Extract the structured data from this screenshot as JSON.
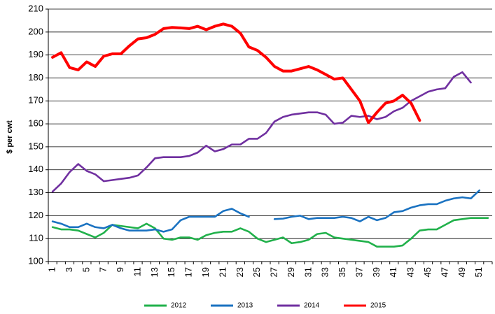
{
  "chart_data": {
    "type": "line",
    "y_label": "$ per cwt",
    "categories": [
      "1",
      null,
      "3",
      null,
      "5",
      null,
      "7",
      null,
      "9",
      null,
      "11",
      null,
      "13",
      null,
      "15",
      null,
      "17",
      null,
      "19",
      null,
      "21",
      null,
      "23",
      null,
      "25",
      null,
      "27",
      null,
      "29",
      null,
      "31",
      null,
      "33",
      null,
      "35",
      null,
      "37",
      null,
      "39",
      null,
      "41",
      null,
      "43",
      null,
      "45",
      null,
      "47",
      null,
      "49",
      null,
      "51",
      null
    ],
    "ylim": [
      100,
      210
    ],
    "yticks": [
      100,
      110,
      120,
      130,
      140,
      150,
      160,
      170,
      180,
      190,
      200,
      210
    ],
    "grid": true,
    "legend": "bottom",
    "series": [
      {
        "name": "2012",
        "color": "#21b14b",
        "values": [
          115,
          114,
          114,
          113.5,
          112,
          110.5,
          112.5,
          116,
          115.5,
          115,
          114.5,
          116.5,
          114.5,
          110,
          109.5,
          110.5,
          110.5,
          109.5,
          111.5,
          112.5,
          113,
          113,
          114.5,
          113,
          110,
          108.5,
          109.5,
          110.5,
          108,
          108.5,
          109.5,
          112,
          112.5,
          110.5,
          110,
          109.5,
          109,
          108.5,
          106.5,
          106.5,
          106.5,
          107,
          110,
          113.5,
          114,
          114,
          116,
          118,
          118.5,
          119,
          119,
          119
        ]
      },
      {
        "name": "2013",
        "color": "#1a72c1",
        "values": [
          117.5,
          116.5,
          115,
          115,
          116.5,
          115,
          114.5,
          116,
          114.5,
          113.5,
          113.5,
          113.5,
          114,
          113,
          114,
          118,
          119.5,
          119.5,
          119.5,
          119.5,
          122,
          123,
          121,
          119.5,
          null,
          null,
          118.5,
          118.7,
          119.5,
          120,
          118.5,
          119,
          119,
          119,
          119.5,
          119,
          117.5,
          119.5,
          118,
          119,
          121.5,
          122,
          123.5,
          124.5,
          125,
          125,
          126.5,
          127.5,
          128,
          127.5,
          131,
          null
        ]
      },
      {
        "name": "2014",
        "color": "#7030a0",
        "values": [
          130.5,
          134,
          139,
          142.5,
          139.5,
          138,
          135,
          135.5,
          136,
          136.5,
          137.5,
          141,
          145,
          145.5,
          145.5,
          145.5,
          146,
          147.5,
          150.5,
          148,
          149,
          151,
          151,
          153.5,
          153.5,
          156,
          161,
          163,
          164,
          164.5,
          165,
          165,
          164,
          160,
          160.5,
          163.5,
          163,
          163.5,
          162,
          163,
          165.5,
          167,
          170,
          172,
          174,
          175,
          175.5,
          180.5,
          182.5,
          178,
          null,
          null
        ]
      },
      {
        "name": "2015",
        "color": "#ff0000",
        "values": [
          189,
          191,
          184.5,
          183.5,
          187,
          185,
          189.5,
          190.5,
          190.5,
          194,
          197,
          197.5,
          199,
          201.5,
          202,
          201.8,
          201.5,
          202.5,
          201,
          202.5,
          203.5,
          202.5,
          199.5,
          193.5,
          192,
          189,
          185,
          183,
          183,
          184,
          185,
          183.5,
          181.5,
          179.5,
          180,
          175,
          170,
          160.5,
          165,
          169,
          170,
          172.5,
          169,
          161.5,
          null,
          null,
          null,
          null,
          null,
          null,
          null,
          null
        ]
      }
    ]
  }
}
